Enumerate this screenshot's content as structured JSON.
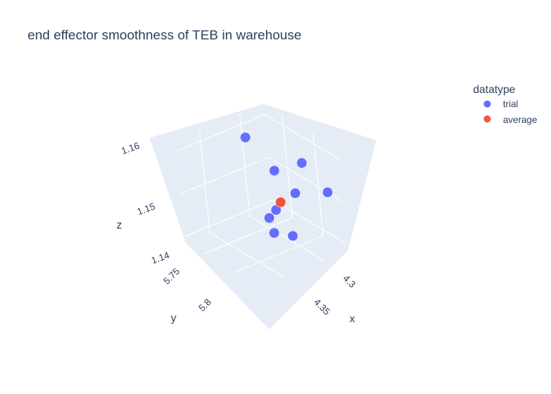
{
  "chart_data": {
    "type": "scatter3d",
    "title": "end effector smoothness of TEB in warehouse",
    "axes": {
      "x": {
        "label": "x",
        "range": [
          4.27,
          4.39
        ],
        "ticks": [
          4.3,
          4.35
        ],
        "tick_labels": [
          "4.3",
          "4.35"
        ]
      },
      "y": {
        "label": "y",
        "range": [
          5.72,
          5.83
        ],
        "ticks": [
          5.75,
          5.8
        ],
        "tick_labels": [
          "5.75",
          "5.8"
        ]
      },
      "z": {
        "label": "z",
        "range": [
          1.1385,
          1.1625
        ],
        "ticks": [
          1.14,
          1.15,
          1.16
        ],
        "tick_labels": [
          "1.14",
          "1.15",
          "1.16"
        ]
      }
    },
    "legend": {
      "title": "datatype",
      "position": "top-right"
    },
    "series": [
      {
        "name": "trial",
        "color": "#636efa",
        "points": [
          {
            "x": 4.283,
            "y": 5.755,
            "z": 1.1585
          },
          {
            "x": 4.34,
            "y": 5.73,
            "z": 1.1555
          },
          {
            "x": 4.32,
            "y": 5.75,
            "z": 1.1535
          },
          {
            "x": 4.345,
            "y": 5.745,
            "z": 1.15
          },
          {
            "x": 4.365,
            "y": 5.72,
            "z": 1.15
          },
          {
            "x": 4.345,
            "y": 5.77,
            "z": 1.148
          },
          {
            "x": 4.332,
            "y": 5.77,
            "z": 1.145
          },
          {
            "x": 4.345,
            "y": 5.775,
            "z": 1.143
          },
          {
            "x": 4.355,
            "y": 5.76,
            "z": 1.142
          }
        ]
      },
      {
        "name": "average",
        "color": "#ef553b",
        "points": [
          {
            "x": 4.337,
            "y": 5.758,
            "z": 1.1482
          }
        ]
      }
    ]
  }
}
